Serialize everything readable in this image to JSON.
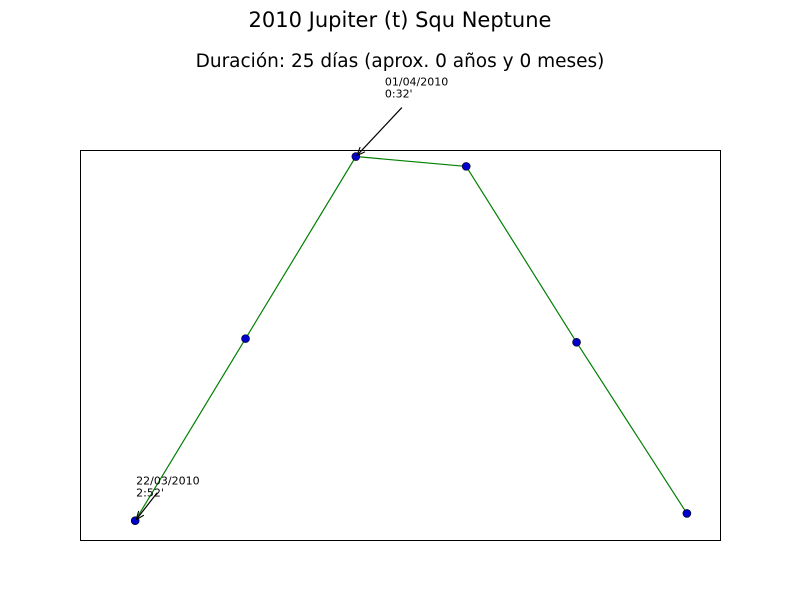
{
  "chart_data": {
    "type": "line",
    "title": "2010 Jupiter (t) Squ Neptune",
    "subtitle": "Duración: 25 días (aprox. 0 años y 0 meses)",
    "xlabel": "",
    "ylabel": "",
    "x": [
      0,
      1,
      2,
      3,
      4,
      5
    ],
    "y": [
      0.0,
      0.5,
      1.0,
      0.973,
      0.49,
      0.02
    ],
    "xlim": [
      -0.5,
      5.3
    ],
    "ylim": [
      -0.053,
      1.018
    ],
    "grid": false,
    "line_color": "#008000",
    "marker_color": "#0000cc",
    "annotations": [
      {
        "point_index": 0,
        "lines": [
          "22/03/2010",
          "2:52'"
        ]
      },
      {
        "point_index": 2,
        "lines": [
          "01/04/2010",
          "0:32'"
        ]
      }
    ]
  }
}
